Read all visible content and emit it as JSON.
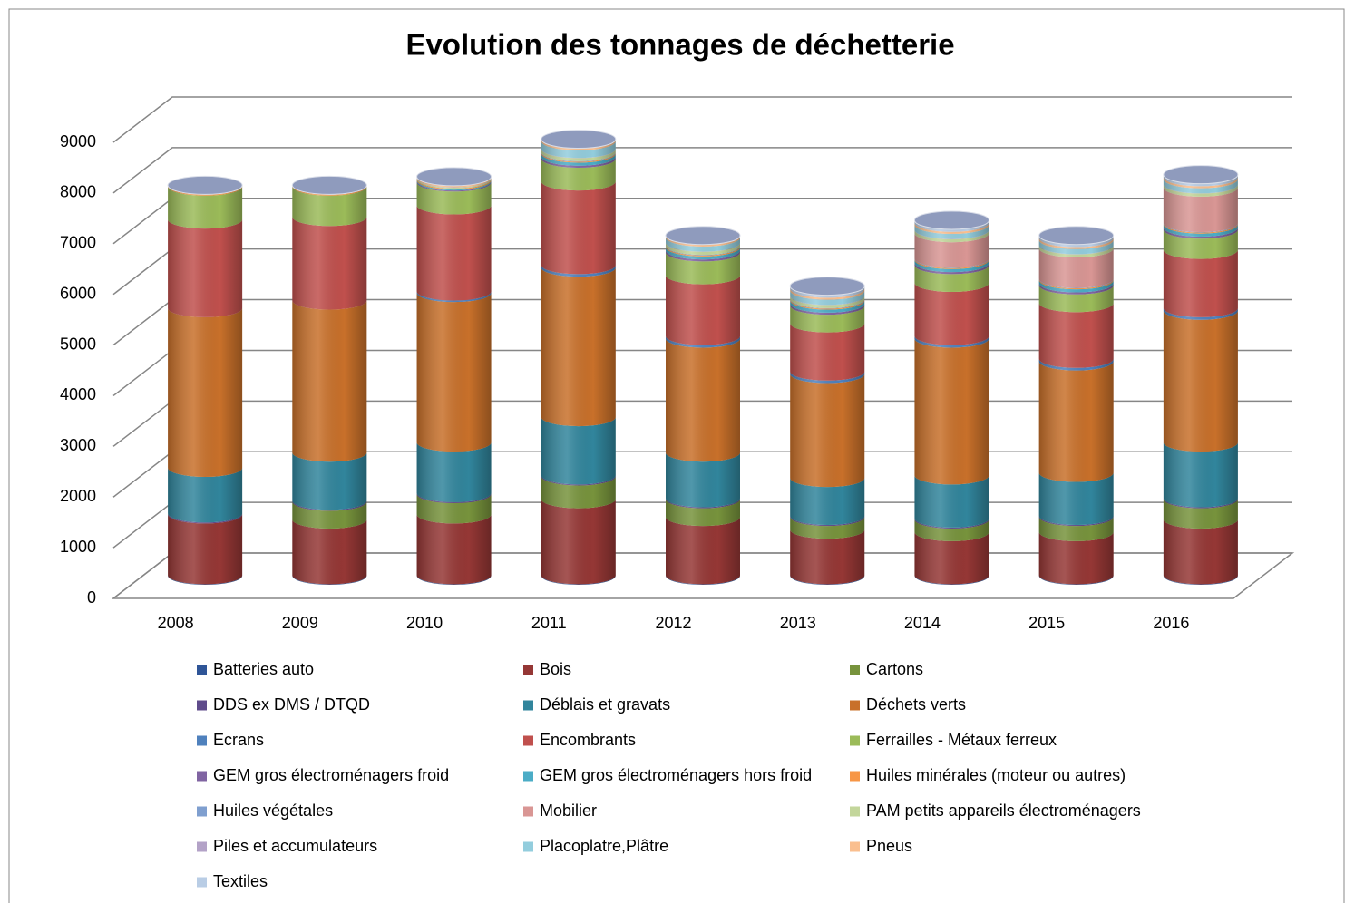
{
  "chart_data": {
    "type": "bar3d_stacked_cylinder",
    "title": "Evolution des tonnages de déchetterie",
    "categories": [
      "2008",
      "2009",
      "2010",
      "2011",
      "2012",
      "2013",
      "2014",
      "2015",
      "2016"
    ],
    "ylim": [
      0,
      9000
    ],
    "yticks": [
      0,
      1000,
      2000,
      3000,
      4000,
      5000,
      6000,
      7000,
      8000,
      9000
    ],
    "grid": true,
    "series": [
      {
        "name": "Batteries auto",
        "color": "#2f5597",
        "values": [
          10,
          10,
          10,
          10,
          10,
          10,
          10,
          10,
          10
        ]
      },
      {
        "name": "Bois",
        "color": "#953735",
        "values": [
          1200,
          1100,
          1200,
          1500,
          1150,
          900,
          850,
          850,
          1100
        ]
      },
      {
        "name": "Cartons",
        "color": "#77933c",
        "values": [
          0,
          350,
          400,
          450,
          350,
          250,
          250,
          300,
          400
        ]
      },
      {
        "name": "DDS ex DMS / DTQD",
        "color": "#5f4b8b",
        "values": [
          20,
          20,
          20,
          20,
          20,
          20,
          20,
          20,
          20
        ]
      },
      {
        "name": "Déblais et gravats",
        "color": "#31859c",
        "values": [
          900,
          950,
          1000,
          1150,
          900,
          750,
          850,
          850,
          1100
        ]
      },
      {
        "name": "Déchets verts",
        "color": "#c8702a",
        "values": [
          3150,
          3000,
          2950,
          2950,
          2250,
          2050,
          2700,
          2200,
          2600
        ]
      },
      {
        "name": "Ecrans",
        "color": "#4f81bd",
        "values": [
          0,
          0,
          30,
          50,
          50,
          50,
          50,
          50,
          50
        ]
      },
      {
        "name": "Encombrants",
        "color": "#c0504d",
        "values": [
          1750,
          1650,
          1700,
          1650,
          1200,
          950,
          1050,
          1100,
          1150
        ]
      },
      {
        "name": "Ferrailles - Métaux ferreux",
        "color": "#9bbb59",
        "values": [
          650,
          600,
          450,
          450,
          450,
          350,
          350,
          350,
          400
        ]
      },
      {
        "name": "GEM gros électroménagers froid",
        "color": "#8064a2",
        "values": [
          0,
          0,
          20,
          40,
          40,
          40,
          40,
          40,
          40
        ]
      },
      {
        "name": "GEM gros électroménagers hors froid",
        "color": "#4bacc6",
        "values": [
          0,
          0,
          20,
          60,
          60,
          60,
          60,
          60,
          60
        ]
      },
      {
        "name": "Huiles minérales (moteur ou autres)",
        "color": "#f79646",
        "values": [
          20,
          20,
          20,
          20,
          20,
          20,
          20,
          20,
          20
        ]
      },
      {
        "name": "Huiles végétales",
        "color": "#7f9fcf",
        "values": [
          0,
          0,
          0,
          10,
          10,
          10,
          10,
          10,
          10
        ]
      },
      {
        "name": "Mobilier",
        "color": "#d99694",
        "values": [
          0,
          0,
          0,
          0,
          0,
          0,
          500,
          600,
          700
        ]
      },
      {
        "name": "PAM petits appareils électroménagers",
        "color": "#c3d69b",
        "values": [
          0,
          0,
          20,
          60,
          60,
          60,
          60,
          60,
          60
        ]
      },
      {
        "name": "Piles et accumulateurs",
        "color": "#b3a2c7",
        "values": [
          5,
          5,
          5,
          5,
          5,
          5,
          5,
          5,
          5
        ]
      },
      {
        "name": "Placoplatre,Plâtre",
        "color": "#93cddd",
        "values": [
          0,
          0,
          0,
          150,
          100,
          100,
          100,
          100,
          100
        ]
      },
      {
        "name": "Pneus",
        "color": "#fabf8f",
        "values": [
          0,
          0,
          30,
          40,
          40,
          40,
          40,
          40,
          40
        ]
      },
      {
        "name": "Textiles",
        "color": "#b9cde5",
        "values": [
          0,
          0,
          0,
          0,
          0,
          50,
          50,
          50,
          50
        ]
      }
    ]
  }
}
